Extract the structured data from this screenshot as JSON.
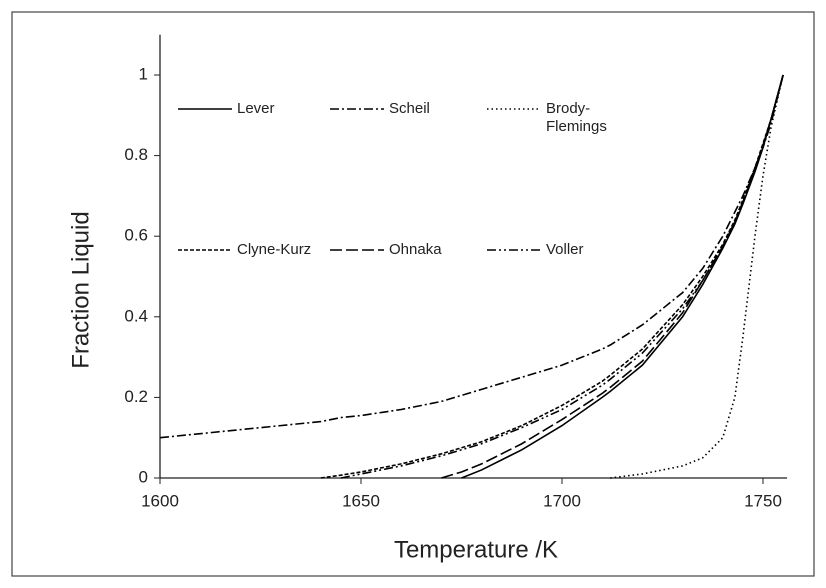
{
  "chart_data": {
    "type": "line",
    "xlabel": "Temperature /K",
    "ylabel": "Fraction Liquid",
    "x": [
      1600,
      1610,
      1620,
      1630,
      1640,
      1645,
      1650,
      1660,
      1670,
      1675,
      1680,
      1690,
      1700,
      1710,
      1712,
      1720,
      1730,
      1735,
      1740,
      1743,
      1745,
      1748,
      1750,
      1752,
      1755
    ],
    "series": [
      {
        "name": "Lever",
        "color": "#000000",
        "values": [
          null,
          null,
          null,
          null,
          null,
          null,
          null,
          null,
          null,
          0,
          0.02,
          0.07,
          0.13,
          0.2,
          0.215,
          0.28,
          0.4,
          0.48,
          0.57,
          0.63,
          0.68,
          0.76,
          0.82,
          0.89,
          1
        ]
      },
      {
        "name": "Scheil",
        "color": "#000000",
        "dash": "9 3 2 3",
        "values": [
          0.1,
          0.11,
          0.12,
          0.13,
          0.14,
          0.15,
          0.155,
          0.17,
          0.19,
          0.205,
          0.22,
          0.25,
          0.28,
          0.32,
          0.33,
          0.38,
          0.46,
          0.52,
          0.6,
          0.66,
          0.7,
          0.77,
          0.82,
          0.88,
          1
        ]
      },
      {
        "name": "Brody-Flemings",
        "color": "#000000",
        "dash": "1.5 3",
        "values": [
          null,
          null,
          null,
          null,
          null,
          null,
          null,
          null,
          null,
          null,
          null,
          null,
          null,
          null,
          0,
          0.01,
          0.03,
          0.05,
          0.1,
          0.2,
          0.35,
          0.6,
          0.75,
          0.87,
          1
        ]
      },
      {
        "name": "Clyne-Kurz",
        "color": "#000000",
        "dash": "4 2",
        "values": [
          null,
          null,
          null,
          null,
          0,
          0.007,
          0.015,
          0.035,
          0.06,
          0.075,
          0.09,
          0.13,
          0.18,
          0.24,
          0.255,
          0.32,
          0.43,
          0.5,
          0.58,
          0.64,
          0.69,
          0.77,
          0.83,
          0.89,
          1
        ]
      },
      {
        "name": "Ohnaka",
        "color": "#000000",
        "dash": "12 4",
        "values": [
          null,
          null,
          null,
          null,
          null,
          null,
          null,
          null,
          0,
          0.015,
          0.035,
          0.085,
          0.145,
          0.21,
          0.225,
          0.29,
          0.41,
          0.49,
          0.575,
          0.635,
          0.685,
          0.765,
          0.825,
          0.89,
          1
        ]
      },
      {
        "name": "Voller",
        "color": "#000000",
        "dash": "9 3 2 3 2 3",
        "values": [
          null,
          null,
          null,
          null,
          null,
          0,
          0.01,
          0.03,
          0.055,
          0.07,
          0.085,
          0.125,
          0.17,
          0.23,
          0.245,
          0.31,
          0.42,
          0.49,
          0.575,
          0.635,
          0.685,
          0.765,
          0.825,
          0.89,
          1
        ]
      }
    ],
    "xlim": [
      1600,
      1756
    ],
    "ylim": [
      0,
      1.1
    ],
    "xticks": [
      1600,
      1650,
      1700,
      1750
    ],
    "yticks": [
      0,
      0.2,
      0.4,
      0.6,
      0.8,
      1
    ],
    "grid": false
  }
}
